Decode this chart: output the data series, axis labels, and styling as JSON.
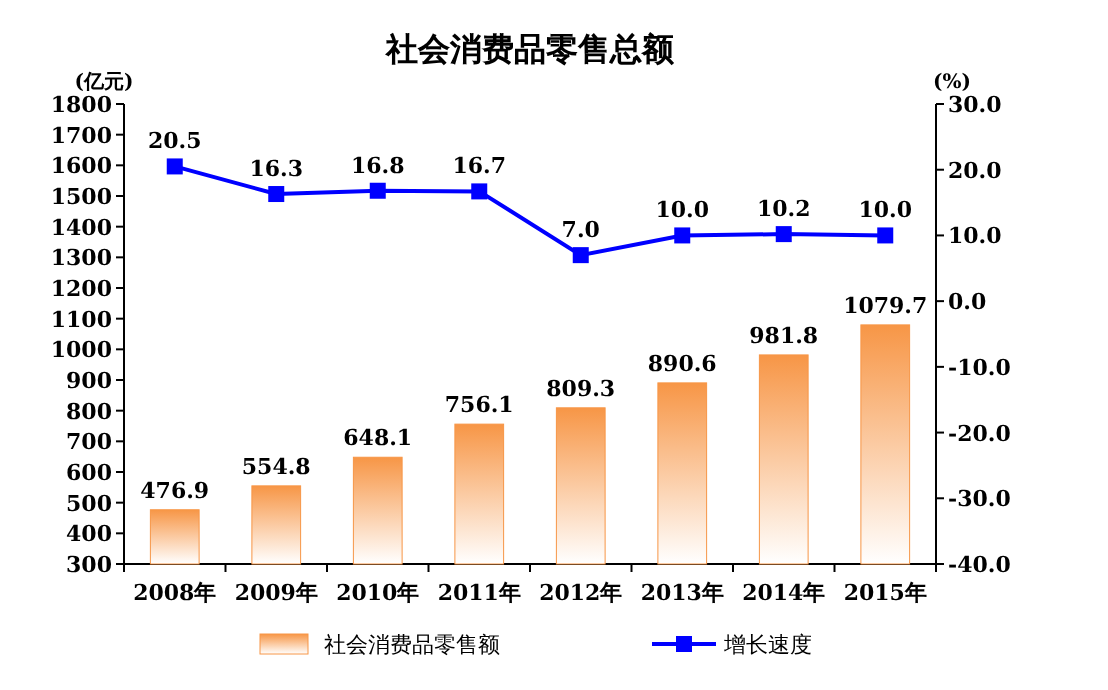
{
  "chart_data": {
    "type": "bar",
    "title": "社会消费品零售总额",
    "ylabel": "(亿元)",
    "y2label": "(%)",
    "categories": [
      "2008年",
      "2009年",
      "2010年",
      "2011年",
      "2012年",
      "2013年",
      "2014年",
      "2015年"
    ],
    "series": [
      {
        "name": "社会消费品零售额",
        "color": "#f79646",
        "values": [
          476.9,
          554.8,
          648.1,
          756.1,
          809.3,
          890.6,
          981.8,
          1079.7
        ]
      },
      {
        "name": "增长速度",
        "type": "line",
        "axis": "y2",
        "color": "#0000ff",
        "marker": "square",
        "values": [
          20.5,
          16.3,
          16.8,
          16.7,
          7.0,
          10.0,
          10.2,
          10.0
        ],
        "value_labels": [
          "20.5",
          "16.3",
          "16.8",
          "16.7",
          "7.0",
          "10.0",
          "10.2",
          "10.0"
        ]
      }
    ],
    "data_labels": true,
    "grid": false,
    "legend": "bottom",
    "ylim": [
      300,
      1800
    ],
    "yticks": [
      300,
      400,
      500,
      600,
      700,
      800,
      900,
      1000,
      1100,
      1200,
      1300,
      1400,
      1500,
      1600,
      1700,
      1800
    ],
    "y2lim": [
      -40,
      30
    ],
    "y2ticks": [
      {
        "value": -40,
        "label": "-40.0"
      },
      {
        "value": -30,
        "label": "-30.0"
      },
      {
        "value": -20,
        "label": "-20.0"
      },
      {
        "value": -10,
        "label": "-10.0"
      },
      {
        "value": 0,
        "label": "0.0"
      },
      {
        "value": 10,
        "label": "10.0"
      },
      {
        "value": 20,
        "label": "20.0"
      },
      {
        "value": 30,
        "label": "30.0"
      }
    ]
  }
}
